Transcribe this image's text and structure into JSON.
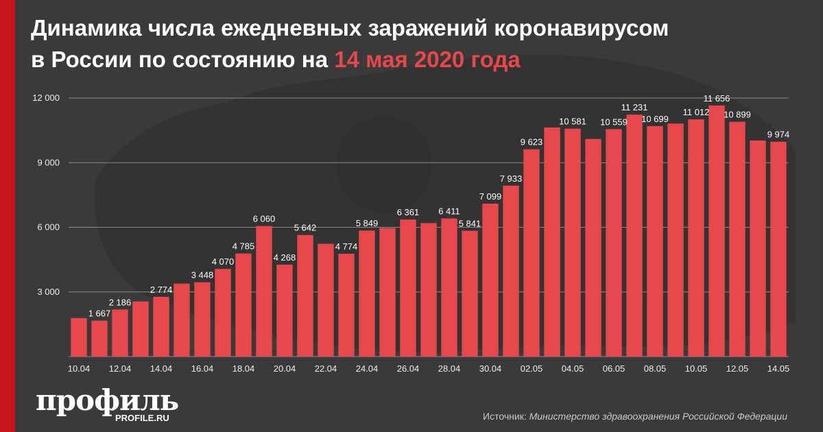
{
  "title": {
    "line1": "Динамика числа ежедневных заражений коронавирусом",
    "line2_prefix": "в России по состоянию на ",
    "line2_highlight": "14 мая 2020 года"
  },
  "colors": {
    "bar": "#e8474c",
    "accent": "#c8161d",
    "background": "#3a3a3a"
  },
  "chart_data": {
    "type": "bar",
    "categories": [
      "10.04",
      "11.04",
      "12.04",
      "13.04",
      "14.04",
      "15.04",
      "16.04",
      "17.04",
      "18.04",
      "19.04",
      "20.04",
      "21.04",
      "22.04",
      "23.04",
      "24.04",
      "25.04",
      "26.04",
      "27.04",
      "28.04",
      "29.04",
      "30.04",
      "01.05",
      "02.05",
      "03.05",
      "04.05",
      "05.05",
      "06.05",
      "07.05",
      "08.05",
      "09.05",
      "10.05",
      "11.05",
      "12.05",
      "13.05",
      "14.05"
    ],
    "values": [
      1786,
      1667,
      2186,
      2558,
      2774,
      3388,
      3448,
      4070,
      4785,
      6060,
      4268,
      5642,
      5236,
      4774,
      5849,
      5966,
      6361,
      6198,
      6411,
      5841,
      7099,
      7933,
      9623,
      10633,
      10581,
      10102,
      10559,
      11231,
      10699,
      10817,
      11012,
      11656,
      10899,
      10028,
      9974
    ],
    "labeled_indices": [
      1,
      2,
      4,
      6,
      7,
      8,
      9,
      10,
      11,
      13,
      14,
      16,
      18,
      19,
      20,
      21,
      22,
      24,
      26,
      27,
      28,
      30,
      31,
      32,
      34
    ],
    "x_tick_labels": [
      "10.04",
      "12.04",
      "14.04",
      "16.04",
      "18.04",
      "20.04",
      "22.04",
      "24.04",
      "26.04",
      "28.04",
      "30.04",
      "02.05",
      "04.05",
      "06.05",
      "08.05",
      "10.05",
      "12.05",
      "14.05"
    ],
    "y_ticks": [
      3000,
      6000,
      9000,
      12000
    ],
    "y_tick_labels": [
      "3 000",
      "6 000",
      "9 000",
      "12 000"
    ],
    "ylim": [
      0,
      12000
    ],
    "grid": true,
    "legend": "none"
  },
  "branding": {
    "logo": "профиль",
    "site": "PROFILE.RU"
  },
  "source": {
    "prefix": "Источник: ",
    "text": "Министерство здравоохранения Российской Федерации"
  }
}
